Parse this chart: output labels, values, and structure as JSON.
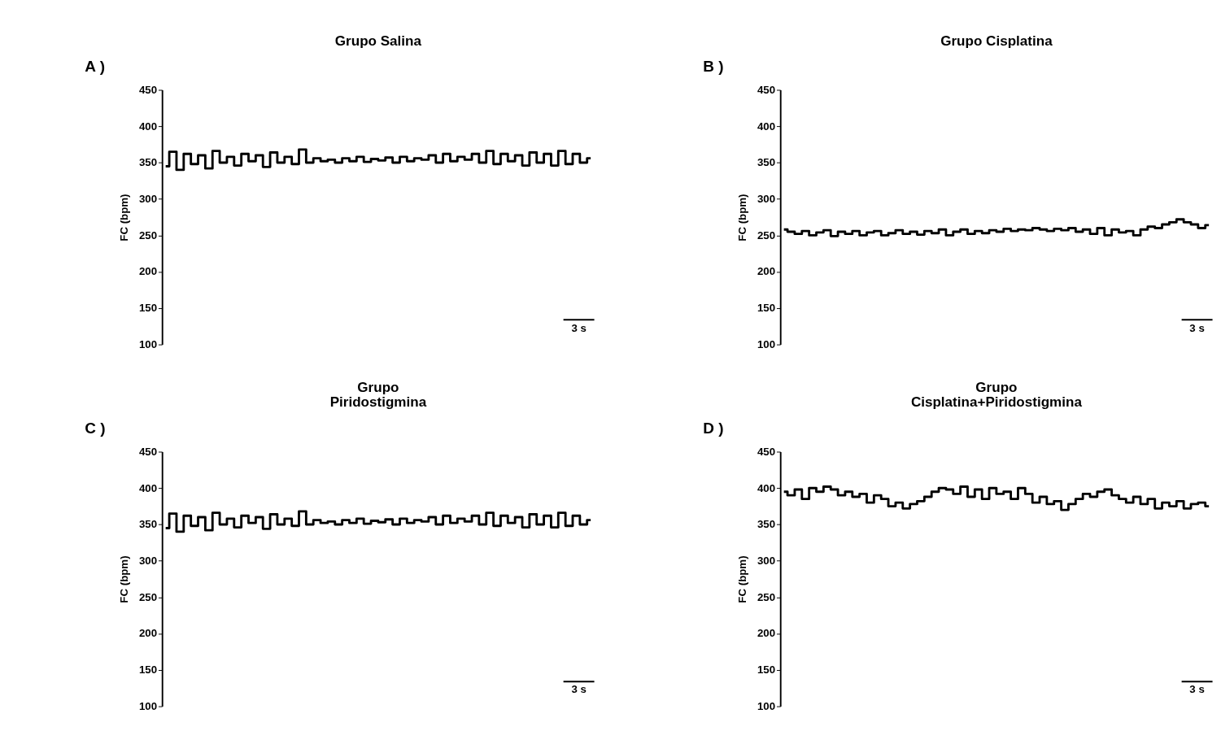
{
  "chart_data": [
    {
      "type": "step",
      "title": "Grupo Salina",
      "ylabel": "FC (bpm)",
      "annotations": [
        "A )",
        "3 s"
      ],
      "categories": [
        null,
        null,
        null,
        null,
        null,
        null,
        null,
        null,
        null,
        null,
        null,
        null,
        null,
        null,
        null,
        null,
        null,
        null,
        null,
        null,
        null,
        null,
        null,
        null,
        null,
        null,
        null,
        null,
        null,
        null,
        null,
        null,
        null,
        null,
        null,
        null,
        null,
        null,
        null,
        null,
        null,
        null,
        null,
        null,
        null,
        null,
        null,
        null,
        null,
        null,
        null,
        null,
        null,
        null,
        null,
        null,
        null,
        null,
        null,
        null
      ],
      "color": "#000000",
      "values": [
        345,
        365,
        340,
        362,
        348,
        360,
        342,
        366,
        350,
        358,
        346,
        362,
        352,
        360,
        344,
        364,
        350,
        358,
        348,
        368,
        350,
        356,
        352,
        354,
        350,
        356,
        352,
        358,
        351,
        355,
        353,
        357,
        350,
        358,
        352,
        356,
        354,
        360,
        350,
        362,
        352,
        358,
        354,
        362,
        350,
        366,
        348,
        362,
        352,
        360,
        346,
        364,
        350,
        362,
        346,
        366,
        348,
        362,
        350,
        356
      ],
      "ylim": [
        100,
        450
      ],
      "yticks": [
        100,
        150,
        200,
        250,
        300,
        350,
        400,
        450
      ],
      "tick_labels": "y"
    },
    {
      "type": "step",
      "title": "Grupo Cisplatina",
      "ylabel": "FC (bpm)",
      "annotations": [
        "B )",
        "3 s"
      ],
      "categories": [
        null,
        null,
        null,
        null,
        null,
        null,
        null,
        null,
        null,
        null,
        null,
        null,
        null,
        null,
        null,
        null,
        null,
        null,
        null,
        null,
        null,
        null,
        null,
        null,
        null,
        null,
        null,
        null,
        null,
        null,
        null,
        null,
        null,
        null,
        null,
        null,
        null,
        null,
        null,
        null,
        null,
        null,
        null,
        null,
        null,
        null,
        null,
        null,
        null,
        null,
        null,
        null,
        null,
        null,
        null,
        null,
        null,
        null,
        null,
        null
      ],
      "color": "#000000",
      "values": [
        258,
        255,
        252,
        256,
        250,
        254,
        257,
        249,
        255,
        252,
        256,
        250,
        254,
        256,
        250,
        253,
        257,
        252,
        255,
        251,
        256,
        253,
        258,
        250,
        255,
        258,
        252,
        256,
        253,
        257,
        255,
        259,
        256,
        258,
        257,
        260,
        258,
        256,
        259,
        257,
        260,
        255,
        258,
        252,
        260,
        250,
        258,
        254,
        256,
        250,
        258,
        262,
        260,
        265,
        268,
        272,
        268,
        265,
        260,
        264
      ],
      "ylim": [
        100,
        450
      ],
      "yticks": [
        100,
        150,
        200,
        250,
        300,
        350,
        400,
        450
      ],
      "tick_labels": "y"
    },
    {
      "type": "step",
      "title": "Grupo\nPiridostigmina",
      "ylabel": "FC (bpm)",
      "annotations": [
        "C )",
        "3 s"
      ],
      "categories": [
        null,
        null,
        null,
        null,
        null,
        null,
        null,
        null,
        null,
        null,
        null,
        null,
        null,
        null,
        null,
        null,
        null,
        null,
        null,
        null,
        null,
        null,
        null,
        null,
        null,
        null,
        null,
        null,
        null,
        null,
        null,
        null,
        null,
        null,
        null,
        null,
        null,
        null,
        null,
        null,
        null,
        null,
        null,
        null,
        null,
        null,
        null,
        null,
        null,
        null,
        null,
        null,
        null,
        null,
        null,
        null,
        null,
        null,
        null,
        null
      ],
      "color": "#000000",
      "values": [
        345,
        365,
        340,
        362,
        348,
        360,
        342,
        366,
        350,
        358,
        346,
        362,
        352,
        360,
        344,
        364,
        350,
        358,
        348,
        368,
        350,
        356,
        352,
        354,
        350,
        356,
        352,
        358,
        351,
        355,
        353,
        357,
        350,
        358,
        352,
        356,
        354,
        360,
        350,
        362,
        352,
        358,
        354,
        362,
        350,
        366,
        348,
        362,
        352,
        360,
        346,
        364,
        350,
        362,
        346,
        366,
        348,
        362,
        350,
        356
      ],
      "ylim": [
        100,
        450
      ],
      "yticks": [
        100,
        150,
        200,
        250,
        300,
        350,
        400,
        450
      ],
      "tick_labels": "y"
    },
    {
      "type": "step",
      "title": "Grupo\nCisplatina+Piridostigmina",
      "ylabel": "FC (bpm)",
      "annotations": [
        "D )",
        "3 s"
      ],
      "categories": [
        null,
        null,
        null,
        null,
        null,
        null,
        null,
        null,
        null,
        null,
        null,
        null,
        null,
        null,
        null,
        null,
        null,
        null,
        null,
        null,
        null,
        null,
        null,
        null,
        null,
        null,
        null,
        null,
        null,
        null,
        null,
        null,
        null,
        null,
        null,
        null,
        null,
        null,
        null,
        null,
        null,
        null,
        null,
        null,
        null,
        null,
        null,
        null,
        null,
        null,
        null,
        null,
        null,
        null,
        null,
        null,
        null,
        null,
        null,
        null
      ],
      "color": "#000000",
      "values": [
        395,
        390,
        398,
        385,
        400,
        395,
        402,
        398,
        390,
        395,
        388,
        392,
        380,
        390,
        385,
        375,
        380,
        372,
        378,
        382,
        388,
        395,
        400,
        398,
        392,
        402,
        388,
        398,
        385,
        400,
        392,
        395,
        385,
        400,
        392,
        380,
        388,
        378,
        382,
        370,
        378,
        385,
        392,
        388,
        395,
        398,
        390,
        385,
        380,
        388,
        378,
        385,
        372,
        380,
        375,
        382,
        372,
        378,
        380,
        375
      ],
      "ylim": [
        100,
        450
      ],
      "yticks": [
        100,
        150,
        200,
        250,
        300,
        350,
        400,
        450
      ],
      "tick_labels": "y"
    }
  ]
}
